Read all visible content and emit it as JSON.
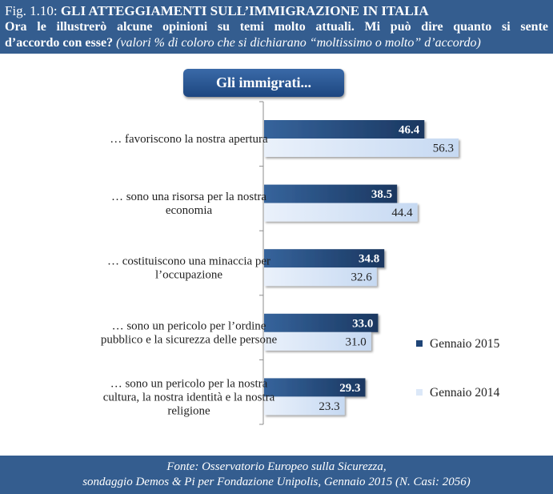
{
  "header": {
    "fig_label": "Fig. 1.10:",
    "title": "GLI ATTEGGIAMENTI SULL’IMMIGRAZIONE IN ITALIA",
    "question_line1": "Ora le illustrerò alcune opinioni su temi molto attuali. Mi può dire quanto si sente",
    "question_line2_bold": "d’accordo con esse?",
    "question_line2_italic": "(valori % di coloro che si dichiarano “moltissimo o molto” d’accordo)"
  },
  "pill": {
    "label": "Gli immigrati..."
  },
  "footer": {
    "line1": "Fonte: Osservatorio Europeo sulla Sicurezza,",
    "line2": "sondaggio Demos & Pi per Fondazione Unipolis, Gennaio 2015 (N. Casi: 2056)"
  },
  "colors": {
    "series2015": "#1f4577",
    "series2014": "#dce8f8",
    "header_bg": "#345d8f"
  },
  "chart_data": {
    "type": "bar",
    "orientation": "horizontal",
    "title": "Gli immigrati...",
    "categories": [
      [
        "… favoriscono la nostra apertura"
      ],
      [
        "… sono una risorsa per la nostra",
        "economia"
      ],
      [
        "… costituiscono una minaccia per",
        "l’occupazione"
      ],
      [
        "… sono un pericolo per l’ordine",
        "pubblico e la sicurezza delle persone"
      ],
      [
        "… sono un pericolo per la nostra",
        "cultura, la nostra identità e la nostra",
        "religione"
      ]
    ],
    "series": [
      {
        "name": "Gennaio 2015",
        "values": [
          46.4,
          38.5,
          34.8,
          33.0,
          29.3
        ],
        "labels": [
          "46.4",
          "38.5",
          "34.8",
          "33.0",
          "29.3"
        ]
      },
      {
        "name": "Gennaio 2014",
        "values": [
          56.3,
          44.4,
          32.6,
          31.0,
          23.3
        ],
        "labels": [
          "56.3",
          "44.4",
          "32.6",
          "31.0",
          "23.3"
        ]
      }
    ],
    "xlim": [
      0,
      65
    ],
    "legend_position": "right",
    "grid": false
  }
}
